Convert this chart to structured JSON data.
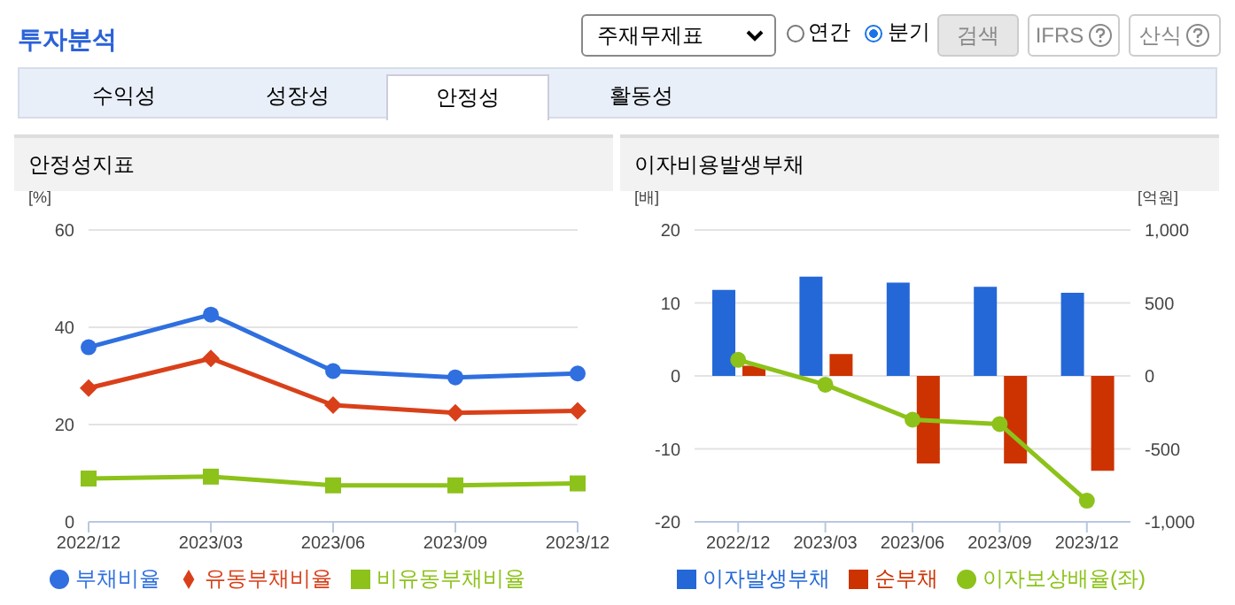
{
  "chart_data": [
    {
      "type": "other",
      "title": "투자분석",
      "annotations": [
        "주재무제표",
        "연간",
        "분기",
        "검색",
        "IFRS",
        "산식",
        "수익성",
        "성장성",
        "안정성",
        "활동성"
      ]
    },
    {
      "type": "line",
      "title": "안정성지표",
      "ylabel": "[%]",
      "categories": [
        "2022/12",
        "2023/03",
        "2023/06",
        "2023/09",
        "2023/12"
      ],
      "ylim": [
        0,
        60
      ],
      "yticks": [
        0,
        20,
        40,
        60
      ],
      "grid": "y",
      "legend": "bottom",
      "series": [
        {
          "name": "부채비율",
          "color": "#2f6fdf",
          "marker": "circle",
          "values": [
            35.9,
            42.6,
            31.0,
            29.7,
            30.5
          ]
        },
        {
          "name": "유동부채비율",
          "color": "#d9401a",
          "marker": "diamond",
          "values": [
            27.5,
            33.6,
            24.0,
            22.4,
            22.8
          ]
        },
        {
          "name": "비유동부채비율",
          "color": "#8cc21a",
          "marker": "square",
          "values": [
            8.9,
            9.3,
            7.5,
            7.5,
            7.9
          ]
        }
      ]
    },
    {
      "type": "bar",
      "title": "이자비용발생부채",
      "ylabel": "[배]",
      "y2label": "[억원]",
      "categories": [
        "2022/12",
        "2023/03",
        "2023/06",
        "2023/09",
        "2023/12"
      ],
      "ylim": [
        -20,
        20
      ],
      "yticks": [
        -20,
        -10,
        0,
        10,
        20
      ],
      "y2lim": [
        -1000,
        1000
      ],
      "y2ticks": [
        {
          "value": -1000,
          "label": "-1,000"
        },
        -500,
        0,
        500,
        {
          "value": 1000,
          "label": "1,000"
        }
      ],
      "grid": "y",
      "legend": "bottom",
      "series": [
        {
          "name": "이자발생부채",
          "color": "#2468d8",
          "axis": "y2",
          "values": [
            590,
            680,
            640,
            610,
            570
          ]
        },
        {
          "name": "순부채",
          "color": "#cc3300",
          "axis": "y2",
          "values": [
            70,
            150,
            -600,
            -600,
            -650
          ]
        },
        {
          "name": "이자보상배율(좌)",
          "type": "line",
          "color": "#8cc21a",
          "marker": "circle",
          "values": [
            2.2,
            -1.2,
            -6.0,
            -6.6,
            -17.1
          ]
        }
      ]
    }
  ]
}
